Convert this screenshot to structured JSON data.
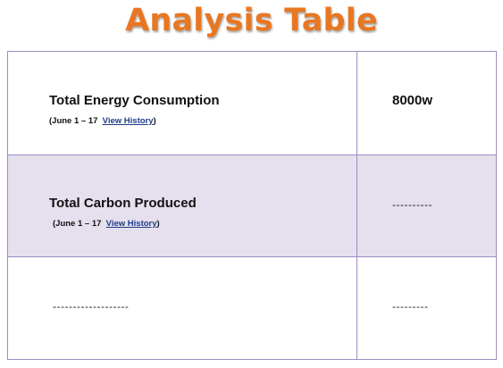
{
  "page": {
    "title": "Analysis Table"
  },
  "table": {
    "rows": [
      {
        "label": "Total Energy Consumption",
        "period": "(June 1 – 17",
        "link": "View History",
        "close_paren": ")",
        "value": "8000w"
      },
      {
        "label": "Total Carbon Produced",
        "period": "(June 1 – 17",
        "link": "View History",
        "close_paren": ")",
        "value": "----------"
      },
      {
        "label": "-------------------",
        "value": "---------"
      }
    ]
  },
  "colors": {
    "title": "#e87722",
    "border": "#9f8cc4",
    "shaded_row": "#e6e0ee",
    "link": "#1f3c88"
  }
}
